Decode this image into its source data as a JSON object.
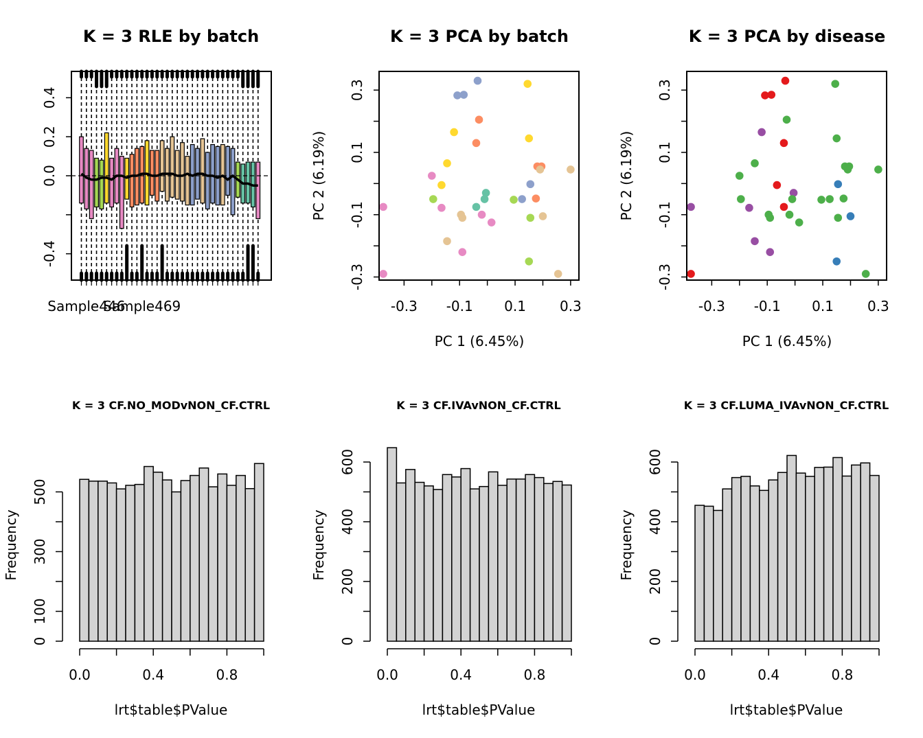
{
  "colors": {
    "batch": [
      "#E78AC3",
      "#A6D854",
      "#FFD92F",
      "#FC8D62",
      "#E5C494",
      "#8DA0CB",
      "#66C2A5"
    ],
    "disease": {
      "red": "#E41A1C",
      "blue": "#377EB8",
      "green": "#4DAF4A",
      "purple": "#984EA3"
    },
    "hist_fill": "#D3D3D3"
  },
  "chart_data": [
    {
      "type": "boxplot",
      "title": "K = 3 RLE by batch",
      "xlabel": "",
      "ylabel": "",
      "ylim": [
        -0.535,
        0.535
      ],
      "yticks": [
        -0.4,
        -0.2,
        0.0,
        0.2,
        0.4
      ],
      "ytick_labels": [
        "-0.4",
        "",
        "0.0",
        "0.2",
        "0.4"
      ],
      "xtick_labels": [
        "Sample446",
        "Sample469"
      ],
      "xtick_label_positions": [
        1,
        12
      ],
      "reference_line": 0.0,
      "boxes": [
        {
          "batch": 0,
          "median": 0.01,
          "q1": -0.14,
          "q3": 0.2
        },
        {
          "batch": 0,
          "median": -0.01,
          "q1": -0.17,
          "q3": 0.14
        },
        {
          "batch": 0,
          "median": -0.02,
          "q1": -0.22,
          "q3": 0.13
        },
        {
          "batch": 1,
          "median": -0.02,
          "q1": -0.16,
          "q3": 0.09
        },
        {
          "batch": 1,
          "median": -0.01,
          "q1": -0.17,
          "q3": 0.08
        },
        {
          "batch": 2,
          "median": -0.01,
          "q1": -0.14,
          "q3": 0.22
        },
        {
          "batch": 0,
          "median": -0.02,
          "q1": -0.16,
          "q3": 0.09
        },
        {
          "batch": 0,
          "median": 0.0,
          "q1": -0.14,
          "q3": 0.14
        },
        {
          "batch": 0,
          "median": 0.0,
          "q1": -0.27,
          "q3": 0.1
        },
        {
          "batch": 2,
          "median": -0.01,
          "q1": -0.12,
          "q3": 0.09
        },
        {
          "batch": 3,
          "median": 0.0,
          "q1": -0.16,
          "q3": 0.11
        },
        {
          "batch": 3,
          "median": 0.0,
          "q1": -0.15,
          "q3": 0.14
        },
        {
          "batch": 3,
          "median": 0.01,
          "q1": -0.14,
          "q3": 0.15
        },
        {
          "batch": 2,
          "median": 0.01,
          "q1": -0.15,
          "q3": 0.18
        },
        {
          "batch": 3,
          "median": 0.0,
          "q1": -0.1,
          "q3": 0.13
        },
        {
          "batch": 3,
          "median": 0.0,
          "q1": -0.13,
          "q3": 0.13
        },
        {
          "batch": 4,
          "median": 0.01,
          "q1": -0.08,
          "q3": 0.18
        },
        {
          "batch": 4,
          "median": 0.01,
          "q1": -0.13,
          "q3": 0.14
        },
        {
          "batch": 4,
          "median": 0.01,
          "q1": -0.11,
          "q3": 0.2
        },
        {
          "batch": 4,
          "median": 0.0,
          "q1": -0.12,
          "q3": 0.13
        },
        {
          "batch": 4,
          "median": 0.0,
          "q1": -0.13,
          "q3": 0.17
        },
        {
          "batch": 4,
          "median": 0.01,
          "q1": -0.15,
          "q3": 0.1
        },
        {
          "batch": 5,
          "median": 0.0,
          "q1": -0.15,
          "q3": 0.16
        },
        {
          "batch": 5,
          "median": 0.01,
          "q1": -0.12,
          "q3": 0.14
        },
        {
          "batch": 4,
          "median": 0.01,
          "q1": -0.14,
          "q3": 0.19
        },
        {
          "batch": 5,
          "median": 0.0,
          "q1": -0.17,
          "q3": 0.12
        },
        {
          "batch": 5,
          "median": 0.0,
          "q1": -0.14,
          "q3": 0.16
        },
        {
          "batch": 5,
          "median": -0.01,
          "q1": -0.15,
          "q3": 0.15
        },
        {
          "batch": 4,
          "median": 0.0,
          "q1": -0.15,
          "q3": 0.16
        },
        {
          "batch": 5,
          "median": -0.02,
          "q1": -0.1,
          "q3": 0.15
        },
        {
          "batch": 5,
          "median": 0.0,
          "q1": -0.2,
          "q3": 0.14
        },
        {
          "batch": 1,
          "median": -0.02,
          "q1": -0.11,
          "q3": 0.07
        },
        {
          "batch": 6,
          "median": -0.04,
          "q1": -0.14,
          "q3": 0.06
        },
        {
          "batch": 6,
          "median": -0.04,
          "q1": -0.14,
          "q3": 0.07
        },
        {
          "batch": 6,
          "median": -0.05,
          "q1": -0.16,
          "q3": 0.07
        },
        {
          "batch": 0,
          "median": -0.05,
          "q1": -0.22,
          "q3": 0.07
        }
      ]
    },
    {
      "type": "scatter",
      "title": "K = 3 PCA by batch",
      "xlabel": "PC 1 (6.45%)",
      "ylabel": "PC 2 (6.19%)",
      "xlim": [
        -0.39,
        0.33
      ],
      "ylim": [
        -0.31,
        0.36
      ],
      "xticks": [
        -0.3,
        -0.1,
        0.1,
        0.3
      ],
      "yticks": [
        -0.3,
        -0.1,
        0.1,
        0.3
      ],
      "xtick_labels": [
        "-0.3",
        "-0.1",
        "0.1",
        "0.3"
      ],
      "ytick_labels": [
        "-0.3",
        "-0.1",
        "0.1",
        "0.3"
      ],
      "x_minor_ticks": [
        -0.2,
        0.0,
        0.2
      ],
      "y_minor_ticks": [
        -0.2,
        0.0,
        0.2
      ],
      "points": [
        {
          "x": -0.035,
          "y": 0.33,
          "batch": 5
        },
        {
          "x": -0.108,
          "y": 0.283,
          "batch": 5
        },
        {
          "x": -0.085,
          "y": 0.285,
          "batch": 5
        },
        {
          "x": 0.145,
          "y": 0.32,
          "batch": 2
        },
        {
          "x": -0.03,
          "y": 0.205,
          "batch": 3
        },
        {
          "x": -0.12,
          "y": 0.165,
          "batch": 2
        },
        {
          "x": -0.04,
          "y": 0.13,
          "batch": 3
        },
        {
          "x": 0.15,
          "y": 0.145,
          "batch": 2
        },
        {
          "x": -0.145,
          "y": 0.065,
          "batch": 2
        },
        {
          "x": 0.18,
          "y": 0.055,
          "batch": 3
        },
        {
          "x": 0.195,
          "y": 0.055,
          "batch": 3
        },
        {
          "x": 0.19,
          "y": 0.045,
          "batch": 4
        },
        {
          "x": 0.3,
          "y": 0.045,
          "batch": 4
        },
        {
          "x": -0.2,
          "y": 0.025,
          "batch": 0
        },
        {
          "x": -0.165,
          "y": -0.005,
          "batch": 2
        },
        {
          "x": 0.155,
          "y": -0.002,
          "batch": 5
        },
        {
          "x": -0.005,
          "y": -0.03,
          "batch": 6
        },
        {
          "x": -0.195,
          "y": -0.05,
          "batch": 1
        },
        {
          "x": -0.01,
          "y": -0.05,
          "batch": 6
        },
        {
          "x": 0.095,
          "y": -0.052,
          "batch": 1
        },
        {
          "x": 0.125,
          "y": -0.05,
          "batch": 5
        },
        {
          "x": 0.175,
          "y": -0.048,
          "batch": 3
        },
        {
          "x": -0.375,
          "y": -0.075,
          "batch": 0
        },
        {
          "x": -0.165,
          "y": -0.078,
          "batch": 0
        },
        {
          "x": -0.04,
          "y": -0.075,
          "batch": 6
        },
        {
          "x": -0.095,
          "y": -0.1,
          "batch": 4
        },
        {
          "x": -0.09,
          "y": -0.11,
          "batch": 4
        },
        {
          "x": -0.02,
          "y": -0.1,
          "batch": 0
        },
        {
          "x": 0.155,
          "y": -0.11,
          "batch": 1
        },
        {
          "x": 0.2,
          "y": -0.105,
          "batch": 4
        },
        {
          "x": 0.015,
          "y": -0.125,
          "batch": 0
        },
        {
          "x": -0.145,
          "y": -0.185,
          "batch": 4
        },
        {
          "x": -0.09,
          "y": -0.22,
          "batch": 0
        },
        {
          "x": 0.15,
          "y": -0.25,
          "batch": 1
        },
        {
          "x": -0.375,
          "y": -0.29,
          "batch": 0
        },
        {
          "x": 0.255,
          "y": -0.29,
          "batch": 4
        }
      ]
    },
    {
      "type": "scatter",
      "title": "K = 3 PCA by disease",
      "xlabel": "PC 1 (6.45%)",
      "ylabel": "PC 2 (6.19%)",
      "xlim": [
        -0.39,
        0.33
      ],
      "ylim": [
        -0.31,
        0.36
      ],
      "xticks": [
        -0.3,
        -0.1,
        0.1,
        0.3
      ],
      "yticks": [
        -0.3,
        -0.1,
        0.1,
        0.3
      ],
      "xtick_labels": [
        "-0.3",
        "-0.1",
        "0.1",
        "0.3"
      ],
      "ytick_labels": [
        "-0.3",
        "-0.1",
        "0.1",
        "0.3"
      ],
      "x_minor_ticks": [
        -0.2,
        0.0,
        0.2
      ],
      "y_minor_ticks": [
        -0.2,
        0.0,
        0.2
      ],
      "points": [
        {
          "x": -0.035,
          "y": 0.33,
          "group": "red"
        },
        {
          "x": -0.108,
          "y": 0.283,
          "group": "red"
        },
        {
          "x": -0.085,
          "y": 0.285,
          "group": "red"
        },
        {
          "x": 0.145,
          "y": 0.32,
          "group": "green"
        },
        {
          "x": -0.03,
          "y": 0.205,
          "group": "green"
        },
        {
          "x": -0.12,
          "y": 0.165,
          "group": "purple"
        },
        {
          "x": -0.04,
          "y": 0.13,
          "group": "red"
        },
        {
          "x": 0.15,
          "y": 0.145,
          "group": "green"
        },
        {
          "x": -0.145,
          "y": 0.065,
          "group": "green"
        },
        {
          "x": 0.18,
          "y": 0.055,
          "group": "green"
        },
        {
          "x": 0.195,
          "y": 0.055,
          "group": "green"
        },
        {
          "x": 0.19,
          "y": 0.045,
          "group": "green"
        },
        {
          "x": 0.3,
          "y": 0.045,
          "group": "green"
        },
        {
          "x": -0.2,
          "y": 0.025,
          "group": "green"
        },
        {
          "x": -0.065,
          "y": -0.005,
          "group": "red"
        },
        {
          "x": 0.155,
          "y": -0.002,
          "group": "blue"
        },
        {
          "x": -0.005,
          "y": -0.03,
          "group": "purple"
        },
        {
          "x": -0.195,
          "y": -0.05,
          "group": "green"
        },
        {
          "x": -0.01,
          "y": -0.05,
          "group": "green"
        },
        {
          "x": 0.095,
          "y": -0.052,
          "group": "green"
        },
        {
          "x": 0.125,
          "y": -0.05,
          "group": "green"
        },
        {
          "x": 0.175,
          "y": -0.048,
          "group": "green"
        },
        {
          "x": -0.375,
          "y": -0.075,
          "group": "purple"
        },
        {
          "x": -0.165,
          "y": -0.078,
          "group": "purple"
        },
        {
          "x": -0.04,
          "y": -0.075,
          "group": "red"
        },
        {
          "x": -0.095,
          "y": -0.1,
          "group": "green"
        },
        {
          "x": -0.09,
          "y": -0.11,
          "group": "green"
        },
        {
          "x": -0.02,
          "y": -0.1,
          "group": "green"
        },
        {
          "x": 0.155,
          "y": -0.11,
          "group": "green"
        },
        {
          "x": 0.2,
          "y": -0.105,
          "group": "blue"
        },
        {
          "x": 0.015,
          "y": -0.125,
          "group": "green"
        },
        {
          "x": -0.145,
          "y": -0.185,
          "group": "purple"
        },
        {
          "x": -0.09,
          "y": -0.22,
          "group": "purple"
        },
        {
          "x": 0.15,
          "y": -0.25,
          "group": "blue"
        },
        {
          "x": -0.375,
          "y": -0.29,
          "group": "red"
        },
        {
          "x": 0.255,
          "y": -0.29,
          "group": "green"
        }
      ]
    },
    {
      "type": "bar",
      "title": "K = 3 CF.NO_MODvNON_CF.CTRL",
      "xlabel": "lrt$table$PValue",
      "ylabel": "Frequency",
      "xlim": [
        0,
        1
      ],
      "ylim": [
        0,
        600
      ],
      "bin_width": 0.05,
      "xticks": [
        0.0,
        0.2,
        0.4,
        0.6,
        0.8,
        1.0
      ],
      "xtick_labels": [
        "0.0",
        "",
        "0.4",
        "",
        "0.8",
        ""
      ],
      "yticks": [
        0,
        100,
        200,
        300,
        400,
        500
      ],
      "ytick_labels": [
        "0",
        "100",
        "",
        "300",
        "",
        "500"
      ],
      "values": [
        542,
        536,
        536,
        530,
        510,
        522,
        525,
        585,
        566,
        540,
        500,
        538,
        555,
        580,
        517,
        560,
        522,
        555,
        511,
        595
      ]
    },
    {
      "type": "bar",
      "title": "K = 3 CF.IVAvNON_CF.CTRL",
      "xlabel": "lrt$table$PValue",
      "ylabel": "Frequency",
      "xlim": [
        0,
        1
      ],
      "ylim": [
        0,
        650
      ],
      "bin_width": 0.05,
      "xticks": [
        0.0,
        0.2,
        0.4,
        0.6,
        0.8,
        1.0
      ],
      "xtick_labels": [
        "0.0",
        "",
        "0.4",
        "",
        "0.8",
        ""
      ],
      "yticks": [
        0,
        100,
        200,
        300,
        400,
        500,
        600
      ],
      "ytick_labels": [
        "0",
        "",
        "200",
        "",
        "400",
        "",
        "600"
      ],
      "values": [
        648,
        530,
        575,
        532,
        520,
        508,
        558,
        550,
        578,
        510,
        518,
        567,
        522,
        543,
        543,
        558,
        548,
        528,
        535,
        523
      ]
    },
    {
      "type": "bar",
      "title": "K = 3 CF.LUMA_IVAvNON_CF.CTRL",
      "xlabel": "lrt$table$PValue",
      "ylabel": "Frequency",
      "xlim": [
        0,
        1
      ],
      "ylim": [
        0,
        620
      ],
      "bin_width": 0.05,
      "xticks": [
        0.0,
        0.2,
        0.4,
        0.6,
        0.8,
        1.0
      ],
      "xtick_labels": [
        "0.0",
        "",
        "0.4",
        "",
        "0.8",
        ""
      ],
      "yticks": [
        0,
        100,
        200,
        300,
        400,
        500,
        600
      ],
      "ytick_labels": [
        "0",
        "",
        "200",
        "",
        "400",
        "",
        "600"
      ],
      "values": [
        455,
        452,
        438,
        510,
        548,
        552,
        520,
        505,
        540,
        565,
        622,
        563,
        552,
        582,
        583,
        615,
        553,
        590,
        597,
        555
      ]
    }
  ]
}
